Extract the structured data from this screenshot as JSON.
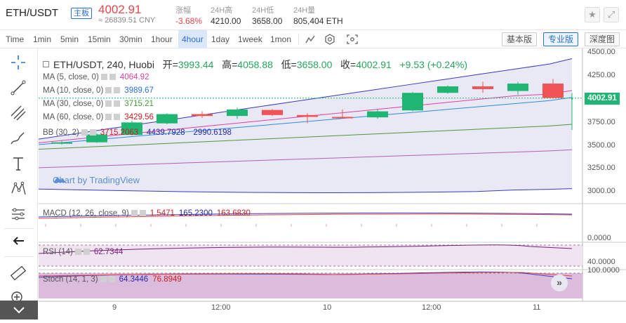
{
  "header": {
    "pair": "ETH/USDT",
    "board_tag": "主板",
    "price": "4002.91",
    "price_cny": "≈ 26839.51 CNY",
    "stats": [
      {
        "label": "涨幅",
        "value": "-3.68%",
        "negative": true
      },
      {
        "label": "24H高",
        "value": "4210.00",
        "negative": false
      },
      {
        "label": "24H低",
        "value": "3658.00",
        "negative": false
      },
      {
        "label": "24H量",
        "value": "805,404 ETH",
        "negative": false
      }
    ],
    "buttons": [
      {
        "name": "star-icon",
        "glyph": "★"
      },
      {
        "name": "fullscreen-icon",
        "glyph": "⤢"
      }
    ]
  },
  "toolbar": {
    "timeframes": [
      "Time",
      "1min",
      "5min",
      "15min",
      "30min",
      "1hour",
      "4hour",
      "1day",
      "1week",
      "1mon"
    ],
    "active_timeframe": "4hour",
    "modes": [
      "基本版",
      "专业版",
      "深度图"
    ],
    "active_mode": "专业版"
  },
  "chart": {
    "title": {
      "symbol": "ETH/USDT, 240, Huobi",
      "open_label": "开=",
      "open": "3993.44",
      "high_label": "高=",
      "high": "4058.88",
      "low_label": "低=",
      "low": "3658.00",
      "close_label": "收=",
      "close": "4002.91",
      "change": "+9.53 (+0.24%)"
    },
    "indicators": [
      {
        "name": "MA (5, close, 0)",
        "value": "4064.92",
        "color": "#e040a0"
      },
      {
        "name": "MA (10, close, 0)",
        "value": "3989.67",
        "color": "#2a6fdb"
      },
      {
        "name": "MA (30, close, 0)",
        "value": "3715.21",
        "color": "#4a9a3a"
      },
      {
        "name": "MA (60, close, 0)",
        "value": "3429.56",
        "color": "#cc1f1f"
      }
    ],
    "bb": {
      "name": "BB (30, 2)",
      "values": [
        "3715.2063",
        "4439.7928",
        "2990.6198"
      ],
      "colors": [
        "#cc1f1f",
        "#2a2aa8",
        "#2a2aa8"
      ]
    },
    "macd": {
      "name": "MACD (12, 26, close, 9)",
      "values": [
        "1.5471",
        "165.2300",
        "163.6830"
      ],
      "colors": [
        "#cc1f1f",
        "#2a2aa8",
        "#cc1f1f"
      ]
    },
    "rsi": {
      "name": "RSI (14)",
      "value": "62.7344",
      "color": "#7a1f7a"
    },
    "stoch": {
      "name": "Stoch (14, 1, 3)",
      "values": [
        "64.3446",
        "76.8949"
      ],
      "colors": [
        "#2a2aa8",
        "#cc1f1f"
      ]
    },
    "watermark": "Chart by TradingView",
    "last_price_tag": "4002.91",
    "price_axis": [
      "4500.00",
      "4250.00",
      "4000.00",
      "3750.00",
      "3500.00",
      "3250.00",
      "3000.00"
    ],
    "macd_axis": [
      "0.0000"
    ],
    "rsi_axis": [
      "40.0000"
    ],
    "stoch_axis": [
      "100.0000"
    ],
    "time_axis": [
      "9",
      "12:00",
      "10",
      "12:00",
      "11"
    ],
    "colors": {
      "up": "#1fb573",
      "down": "#f05454"
    }
  },
  "chart_data": {
    "type": "candlestick",
    "title": "ETH/USDT, 240, Huobi",
    "candles": [
      {
        "o": 3520,
        "h": 3540,
        "l": 3500,
        "c": 3525
      },
      {
        "o": 3525,
        "h": 3620,
        "l": 3520,
        "c": 3610
      },
      {
        "o": 3605,
        "h": 3760,
        "l": 3600,
        "c": 3740
      },
      {
        "o": 3730,
        "h": 3840,
        "l": 3720,
        "c": 3830
      },
      {
        "o": 3830,
        "h": 3860,
        "l": 3790,
        "c": 3810
      },
      {
        "o": 3810,
        "h": 3900,
        "l": 3780,
        "c": 3880
      },
      {
        "o": 3875,
        "h": 3885,
        "l": 3810,
        "c": 3820
      },
      {
        "o": 3820,
        "h": 3840,
        "l": 3730,
        "c": 3800
      },
      {
        "o": 3800,
        "h": 3880,
        "l": 3780,
        "c": 3790
      },
      {
        "o": 3795,
        "h": 3880,
        "l": 3780,
        "c": 3860
      },
      {
        "o": 3870,
        "h": 4070,
        "l": 3860,
        "c": 4060
      },
      {
        "o": 4060,
        "h": 4140,
        "l": 4050,
        "c": 4130
      },
      {
        "o": 4130,
        "h": 4180,
        "l": 4060,
        "c": 4100
      },
      {
        "o": 4080,
        "h": 4180,
        "l": 4040,
        "c": 4160
      },
      {
        "o": 4160,
        "h": 4210,
        "l": 4000,
        "c": 4005
      },
      {
        "o": 3993.44,
        "h": 4058.88,
        "l": 3658.0,
        "c": 4002.91
      }
    ],
    "ylim": [
      2900,
      4540
    ]
  }
}
